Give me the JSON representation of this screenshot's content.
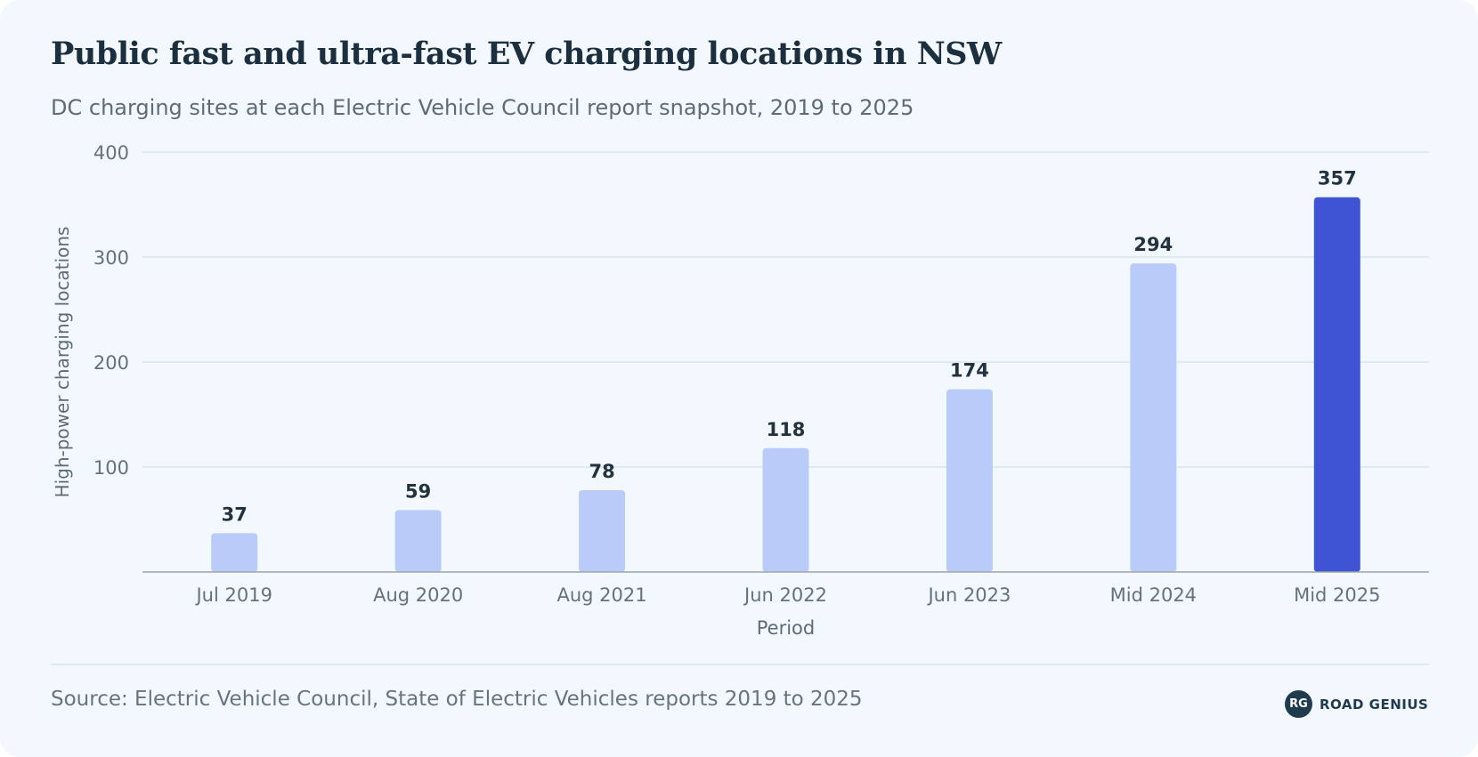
{
  "header": {
    "title": "Public fast and ultra-fast EV charging locations in NSW",
    "subtitle": "DC charging sites at each Electric Vehicle Council report snapshot, 2019 to 2025"
  },
  "footer": {
    "source": "Source: Electric Vehicle Council, State of Electric Vehicles reports 2019 to 2025",
    "logo_mark": "RG",
    "logo_text": "ROAD GENIUS"
  },
  "colors": {
    "bar": "#b9cbf8",
    "bar_highlight": "#3f54d4",
    "grid": "#dde3ea",
    "axis": "#9aa3ab",
    "tick_text": "#67717a",
    "value_text": "#22323f",
    "axis_title_text": "#5f6b74"
  },
  "chart_data": {
    "type": "bar",
    "title": "Public fast and ultra-fast EV charging locations in NSW",
    "subtitle": "DC charging sites at each Electric Vehicle Council report snapshot, 2019 to 2025",
    "xlabel": "Period",
    "ylabel": "High-power charging locations",
    "categories": [
      "Jul 2019",
      "Aug 2020",
      "Aug 2021",
      "Jun 2022",
      "Jun 2023",
      "Mid 2024",
      "Mid 2025"
    ],
    "values": [
      37,
      59,
      78,
      118,
      174,
      294,
      357
    ],
    "highlight_index": 6,
    "ylim": [
      0,
      400
    ],
    "yticks": [
      100,
      200,
      300,
      400
    ],
    "grid": true,
    "legend": "none",
    "data_labels": true
  }
}
